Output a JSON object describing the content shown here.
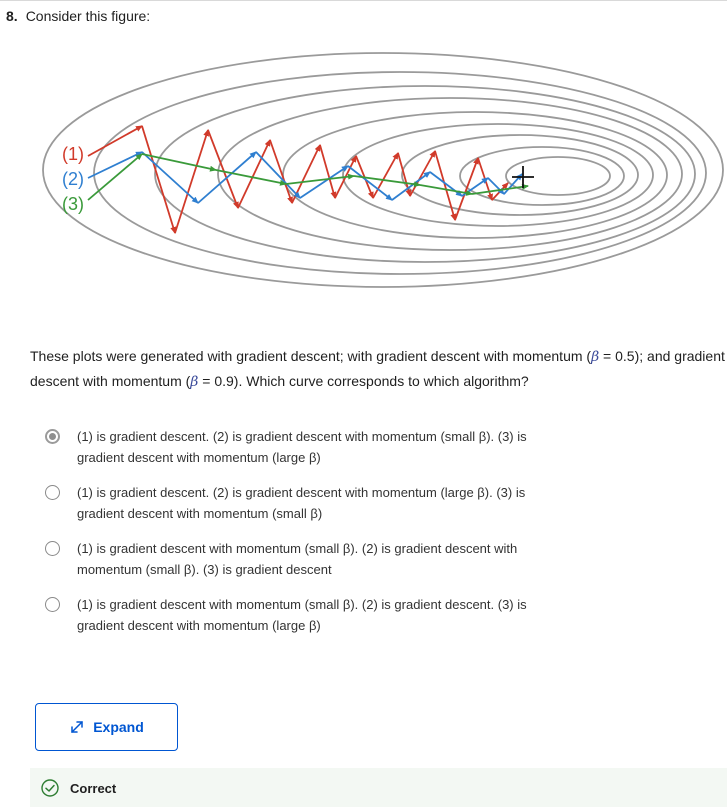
{
  "question": {
    "number": "8.",
    "prompt": "Consider this figure:",
    "text_part1": "These plots were generated with gradient descent; with gradient descent with momentum (",
    "beta1": "β",
    "text_part2": " = 0.5); and gradient descent with momentum (",
    "beta2": "β",
    "text_part3": " = 0.9). Which curve corresponds to which algorithm?"
  },
  "figure": {
    "labels": [
      "(1)",
      "(2)",
      "(3)"
    ],
    "colors": {
      "curve1": "#d13a2a",
      "curve2": "#2f7fd0",
      "curve3": "#3a9a3a",
      "contour": "#9a9a9a",
      "label1": "#d13a2a",
      "label2": "#2f7fd0",
      "label3": "#3a9a3a"
    },
    "optimum_marker": "plus-icon"
  },
  "options": [
    {
      "selected": true,
      "line1": "(1) is gradient descent. (2) is gradient descent with momentum (small β). (3) is",
      "line2": "gradient descent with momentum (large β)"
    },
    {
      "selected": false,
      "line1": "(1) is gradient descent. (2) is gradient descent with momentum (large β). (3) is",
      "line2": "gradient descent with momentum (small β)"
    },
    {
      "selected": false,
      "line1": "(1) is gradient descent with momentum (small β). (2) is gradient descent with",
      "line2": "momentum (small β). (3) is gradient descent"
    },
    {
      "selected": false,
      "line1": "(1) is gradient descent with momentum (small β). (2) is gradient descent. (3) is",
      "line2": "gradient descent with momentum (large β)"
    }
  ],
  "expand": {
    "label": "Expand",
    "icon": "expand-arrows-icon"
  },
  "feedback": {
    "label": "Correct",
    "icon": "check-circle-icon",
    "color": "#2e7d32"
  }
}
